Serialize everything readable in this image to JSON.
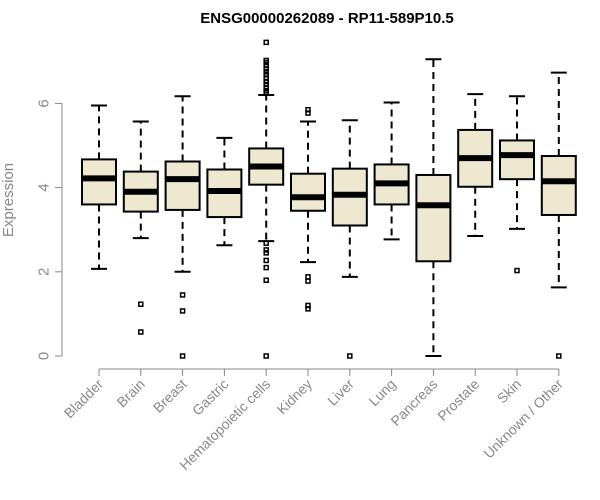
{
  "chart_data": {
    "type": "boxplot",
    "title": "ENSG00000262089 - RP11-589P10.5",
    "xlabel": "",
    "ylabel": "Expression",
    "ylim": [
      0,
      7.5
    ],
    "yticks": [
      0,
      2,
      4,
      6
    ],
    "colors": {
      "box_fill": "#efe8d0",
      "stroke": "#000000",
      "axis": "#888888"
    },
    "categories": [
      "Bladder",
      "Brain",
      "Breast",
      "Gastric",
      "Hematopoietic cells",
      "Kidney",
      "Liver",
      "Lung",
      "Pancreas",
      "Prostate",
      "Skin",
      "Unknown / Other"
    ],
    "boxes": [
      {
        "name": "Bladder",
        "whisker_low": 2.07,
        "q1": 3.6,
        "median": 4.22,
        "q3": 4.67,
        "whisker_high": 5.95,
        "outliers": []
      },
      {
        "name": "Brain",
        "whisker_low": 2.8,
        "q1": 3.43,
        "median": 3.9,
        "q3": 4.38,
        "whisker_high": 5.57,
        "outliers": [
          1.23,
          0.57
        ]
      },
      {
        "name": "Breast",
        "whisker_low": 2.0,
        "q1": 3.47,
        "median": 4.2,
        "q3": 4.62,
        "whisker_high": 6.17,
        "outliers": [
          1.45,
          1.07,
          0.0
        ]
      },
      {
        "name": "Gastric",
        "whisker_low": 2.63,
        "q1": 3.3,
        "median": 3.92,
        "q3": 4.43,
        "whisker_high": 5.18,
        "outliers": []
      },
      {
        "name": "Hematopoietic cells",
        "whisker_low": 2.73,
        "q1": 4.07,
        "median": 4.5,
        "q3": 4.93,
        "whisker_high": 6.2,
        "outliers": [
          7.45,
          7.02,
          6.97,
          6.9,
          6.82,
          6.75,
          6.68,
          6.6,
          6.52,
          6.45,
          6.37,
          6.3,
          6.25,
          2.68,
          2.52,
          2.45,
          2.27,
          2.1,
          1.8,
          0.0
        ]
      },
      {
        "name": "Kidney",
        "whisker_low": 2.23,
        "q1": 3.45,
        "median": 3.77,
        "q3": 4.33,
        "whisker_high": 5.57,
        "outliers": [
          5.85,
          5.77,
          1.88,
          1.78,
          1.2,
          1.12
        ]
      },
      {
        "name": "Liver",
        "whisker_low": 1.88,
        "q1": 3.1,
        "median": 3.83,
        "q3": 4.45,
        "whisker_high": 5.6,
        "outliers": [
          0.0
        ]
      },
      {
        "name": "Lung",
        "whisker_low": 2.77,
        "q1": 3.6,
        "median": 4.1,
        "q3": 4.55,
        "whisker_high": 6.02,
        "outliers": []
      },
      {
        "name": "Pancreas",
        "whisker_low": 0.0,
        "q1": 2.25,
        "median": 3.58,
        "q3": 4.3,
        "whisker_high": 7.05,
        "outliers": []
      },
      {
        "name": "Prostate",
        "whisker_low": 2.85,
        "q1": 4.02,
        "median": 4.7,
        "q3": 5.37,
        "whisker_high": 6.22,
        "outliers": []
      },
      {
        "name": "Skin",
        "whisker_low": 3.02,
        "q1": 4.2,
        "median": 4.77,
        "q3": 5.12,
        "whisker_high": 6.17,
        "outliers": [
          2.03
        ]
      },
      {
        "name": "Unknown / Other",
        "whisker_low": 1.63,
        "q1": 3.35,
        "median": 4.15,
        "q3": 4.75,
        "whisker_high": 6.73,
        "outliers": [
          0.0
        ]
      }
    ]
  }
}
